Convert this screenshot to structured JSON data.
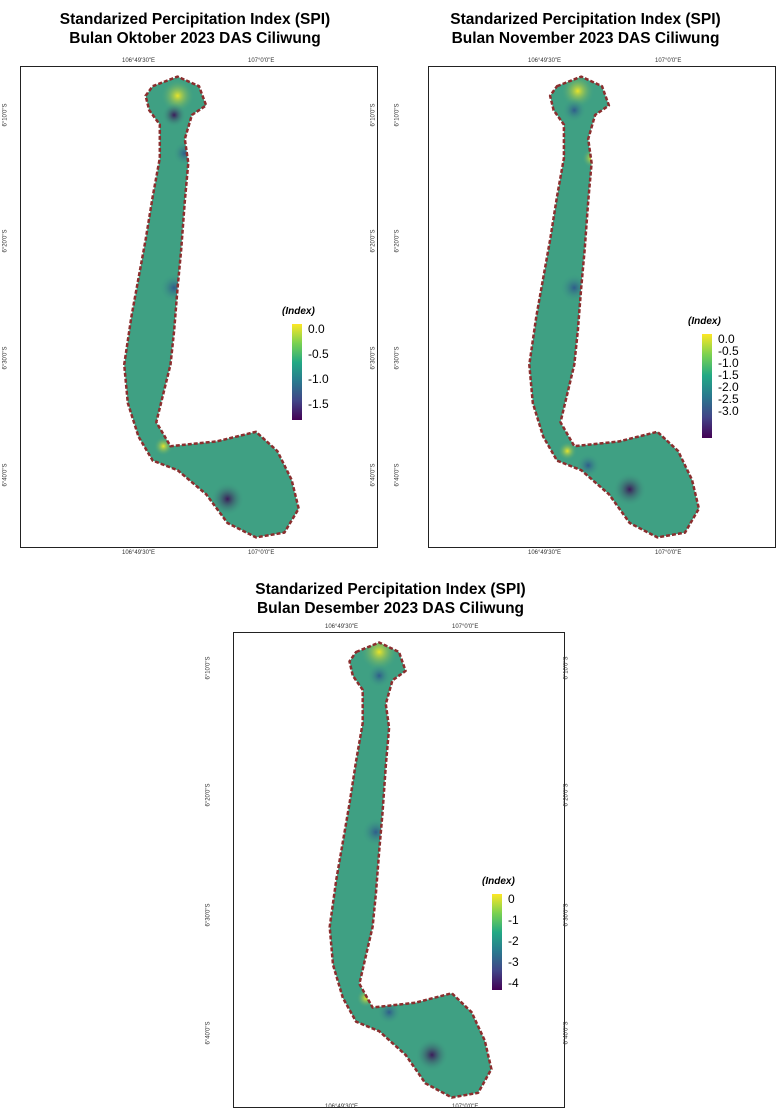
{
  "panels": [
    {
      "title_line1": "Standarized Percipitation Index (SPI)",
      "title_line2": "Bulan Oktober 2023 DAS Ciliwung",
      "lon_ticks": [
        "106°49'30\"E",
        "107°0'0\"E"
      ],
      "lat_ticks": [
        "6°10'0\"S",
        "6°20'0\"S",
        "6°30'0\"S",
        "6°40'0\"S"
      ],
      "legend_title": "(Index)",
      "legend_labels": [
        "0.0",
        "-0.5",
        "-1.0",
        "-1.5"
      ],
      "legend_range": [
        -1.8,
        0.0
      ]
    },
    {
      "title_line1": "Standarized Percipitation Index (SPI)",
      "title_line2": "Bulan November 2023 DAS Ciliwung",
      "lon_ticks": [
        "106°49'30\"E",
        "107°0'0\"E"
      ],
      "lat_ticks": [
        "6°10'0\"S",
        "6°20'0\"S",
        "6°30'0\"S",
        "6°40'0\"S"
      ],
      "legend_title": "(Index)",
      "legend_labels": [
        "0.0",
        "-0.5",
        "-1.0",
        "-1.5",
        "-2.0",
        "-2.5",
        "-3.0"
      ],
      "legend_range": [
        -3.2,
        0.0
      ]
    },
    {
      "title_line1": "Standarized Percipitation Index (SPI)",
      "title_line2": "Bulan Desember 2023 DAS Ciliwung",
      "lon_ticks": [
        "106°49'30\"E",
        "107°0'0\"E"
      ],
      "lat_ticks": [
        "6°10'0\"S",
        "6°20'0\"S",
        "6°30'0\"S",
        "6°40'0\"S"
      ],
      "legend_title": "(Index)",
      "legend_labels": [
        "0",
        "-1",
        "-2",
        "-3",
        "-4"
      ],
      "legend_range": [
        -4.3,
        0.0
      ]
    }
  ],
  "colors": {
    "basin_fill": "#3fa083",
    "boundary": "#8b2e2e",
    "wet_yellow": "#e8e42a",
    "dry_purple": "#3b1c5a",
    "viridis": [
      "#fde725",
      "#7ad151",
      "#22a884",
      "#2a788e",
      "#414487",
      "#440154"
    ]
  }
}
